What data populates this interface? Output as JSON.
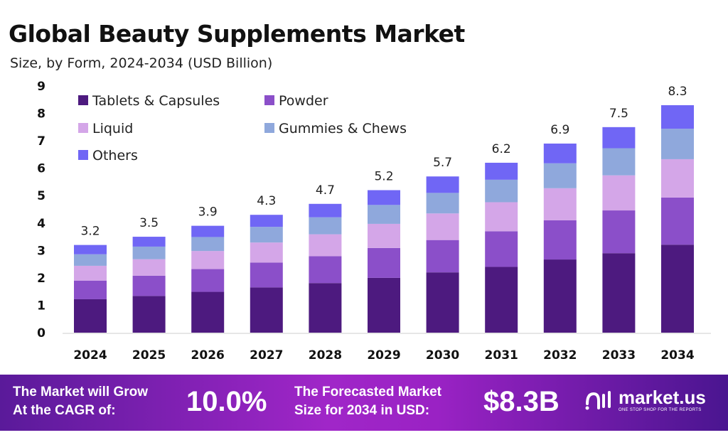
{
  "chart_data": {
    "type": "bar",
    "stacked": true,
    "title": "Global Beauty Supplements Market",
    "subtitle": "Size, by Form, 2024-2034 (USD Billion)",
    "xlabel": "",
    "ylabel": "",
    "ylim": [
      0,
      9
    ],
    "yticks": [
      0,
      1,
      2,
      3,
      4,
      5,
      6,
      7,
      8,
      9
    ],
    "grid": false,
    "legend_position": "top-left",
    "categories": [
      "2024",
      "2025",
      "2026",
      "2027",
      "2028",
      "2029",
      "2030",
      "2031",
      "2032",
      "2033",
      "2034"
    ],
    "totals": [
      3.2,
      3.5,
      3.9,
      4.3,
      4.7,
      5.2,
      5.7,
      6.2,
      6.9,
      7.5,
      8.3
    ],
    "series": [
      {
        "name": "Tablets & Capsules",
        "color": "#4d1a7f",
        "values": [
          1.22,
          1.34,
          1.49,
          1.65,
          1.81,
          2.0,
          2.2,
          2.4,
          2.67,
          2.9,
          3.21
        ]
      },
      {
        "name": "Powder",
        "color": "#8b4fc9",
        "values": [
          0.68,
          0.74,
          0.83,
          0.91,
          0.98,
          1.09,
          1.18,
          1.3,
          1.43,
          1.56,
          1.72
        ]
      },
      {
        "name": "Liquid",
        "color": "#d4a6e8",
        "values": [
          0.54,
          0.6,
          0.66,
          0.73,
          0.8,
          0.88,
          0.97,
          1.06,
          1.17,
          1.28,
          1.4
        ]
      },
      {
        "name": "Gummies & Chews",
        "color": "#8fa8dc",
        "values": [
          0.42,
          0.46,
          0.51,
          0.57,
          0.62,
          0.69,
          0.75,
          0.82,
          0.91,
          0.99,
          1.11
        ]
      },
      {
        "name": "Others",
        "color": "#7066f5",
        "values": [
          0.34,
          0.36,
          0.41,
          0.44,
          0.49,
          0.54,
          0.6,
          0.62,
          0.72,
          0.77,
          0.86
        ]
      }
    ]
  },
  "banner": {
    "cagr_label_line1": "The Market will Grow",
    "cagr_label_line2": "At the CAGR of:",
    "cagr_value": "10.0%",
    "forecast_label_line1": "The Forecasted Market",
    "forecast_label_line2": "Size for 2034 in USD:",
    "forecast_value": "$8.3B",
    "logo_name": "market.us",
    "logo_tagline": "ONE STOP SHOP FOR THE REPORTS"
  }
}
